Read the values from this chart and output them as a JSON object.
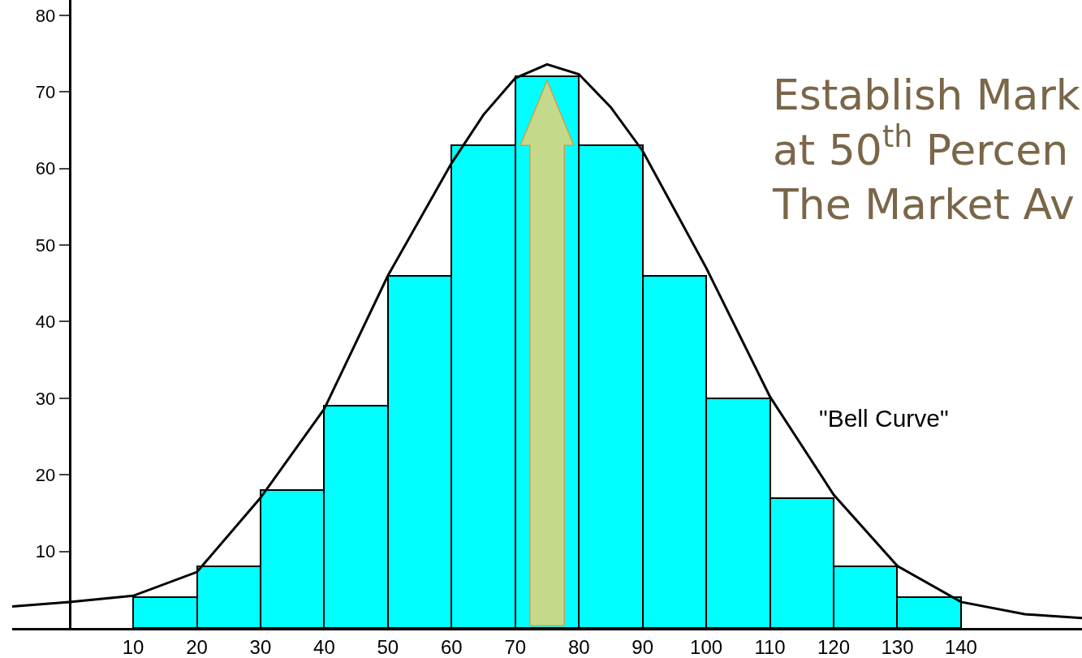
{
  "chart_data": {
    "type": "histogram",
    "bins": [
      10,
      20,
      30,
      40,
      50,
      60,
      70,
      80,
      90,
      100,
      110,
      120,
      130,
      140
    ],
    "series": [
      {
        "color": "#00ffff",
        "values": [
          4,
          8,
          18,
          29,
          46,
          63,
          72,
          63,
          46,
          30,
          17,
          8,
          4
        ]
      },
      {
        "type": "line",
        "color": "#000000",
        "x": [
          -9,
          0,
          10,
          20,
          30,
          40,
          50,
          60,
          65,
          70,
          75,
          80,
          85,
          90,
          100,
          110,
          120,
          130,
          140,
          150,
          159
        ],
        "values": [
          2.8,
          3.4,
          4.2,
          7.3,
          17,
          28.6,
          46,
          60.7,
          67,
          71.8,
          73.6,
          72.3,
          68,
          62.3,
          47,
          30.2,
          17.4,
          8.1,
          3.4,
          1.8,
          1.3
        ]
      }
    ],
    "xlim": [
      -9,
      159
    ],
    "xticks": [
      10,
      20,
      30,
      40,
      50,
      60,
      70,
      80,
      90,
      100,
      110,
      120,
      130,
      140
    ],
    "ylim": [
      0,
      82
    ],
    "yticks": [
      10,
      20,
      30,
      40,
      50,
      60,
      70,
      80
    ],
    "annotations": [
      "\"Bell Curve\"",
      "Establish Mark\nat 50$^{th}$ Percen\nThe Market Av"
    ],
    "marker": "none"
  }
}
